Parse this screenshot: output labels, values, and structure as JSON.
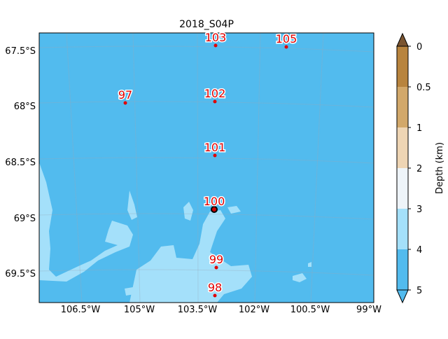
{
  "title": "2018_S04P",
  "x_axis": {
    "labels": [
      "106.5°W",
      "105°W",
      "103.5°W",
      "102°W",
      "100.5°W",
      "99°W"
    ]
  },
  "y_axis": {
    "labels": [
      "67.5°S",
      "68°S",
      "68.5°S",
      "69°S",
      "69.5°S"
    ]
  },
  "stations": [
    {
      "label": "103"
    },
    {
      "label": "105"
    },
    {
      "label": "97"
    },
    {
      "label": "102"
    },
    {
      "label": "101"
    },
    {
      "label": "100"
    },
    {
      "label": "99"
    },
    {
      "label": "98"
    }
  ],
  "colorbar": {
    "label": "Depth (km)",
    "ticks": [
      0,
      0.5,
      1,
      2,
      3,
      4,
      5
    ]
  }
}
